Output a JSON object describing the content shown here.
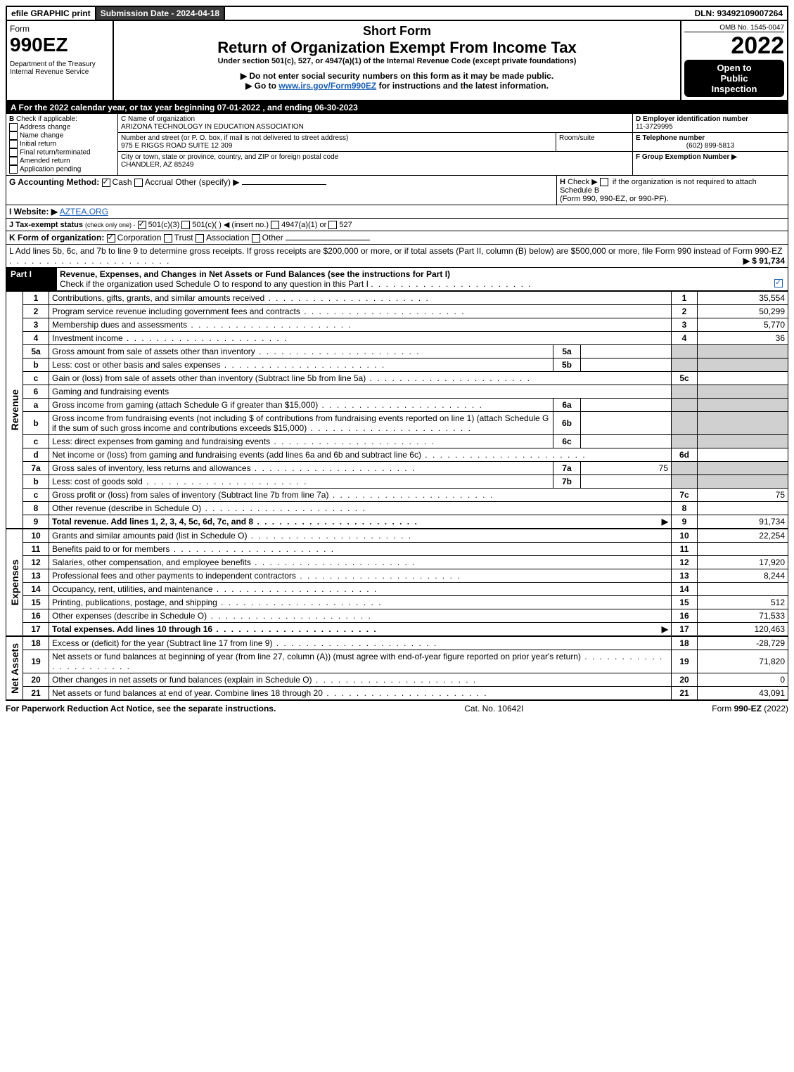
{
  "topbar": {
    "efile": "efile GRAPHIC print",
    "submission_label": "Submission Date - 2024-04-18",
    "dln": "DLN: 93492109007264"
  },
  "header": {
    "form_word": "Form",
    "form_no": "990EZ",
    "dept": "Department of the Treasury",
    "irs": "Internal Revenue Service",
    "short_form": "Short Form",
    "title": "Return of Organization Exempt From Income Tax",
    "subtitle": "Under section 501(c), 527, or 4947(a)(1) of the Internal Revenue Code (except private foundations)",
    "warn": "▶ Do not enter social security numbers on this form as it may be made public.",
    "goto_pre": "▶ Go to ",
    "goto_link": "www.irs.gov/Form990EZ",
    "goto_post": " for instructions and the latest information.",
    "omb": "OMB No. 1545-0047",
    "year": "2022",
    "open1": "Open to",
    "open2": "Public",
    "open3": "Inspection"
  },
  "lineA": "A  For the 2022 calendar year, or tax year beginning 07-01-2022 , and ending 06-30-2023",
  "boxB": {
    "label": "B",
    "check": "Check if applicable:",
    "opts": [
      "Address change",
      "Name change",
      "Initial return",
      "Final return/terminated",
      "Amended return",
      "Application pending"
    ]
  },
  "boxC": {
    "label": "C Name of organization",
    "name": "ARIZONA TECHNOLOGY IN EDUCATION ASSOCIATION",
    "street_label": "Number and street (or P. O. box, if mail is not delivered to street address)",
    "room": "Room/suite",
    "street": "975 E RIGGS ROAD SUITE 12 309",
    "city_label": "City or town, state or province, country, and ZIP or foreign postal code",
    "city": "CHANDLER, AZ  85249"
  },
  "boxD": {
    "label": "D Employer identification number",
    "val": "11-3729995"
  },
  "boxE": {
    "label": "E Telephone number",
    "val": "(602) 899-5813"
  },
  "boxF": {
    "label": "F Group Exemption Number   ▶"
  },
  "lineG": {
    "label": "G Accounting Method:",
    "cash": "Cash",
    "accrual": "Accrual",
    "other": "Other (specify) ▶"
  },
  "lineH": {
    "label": "H",
    "text1": "Check ▶",
    "text2": "if the organization is not required to attach Schedule B",
    "text3": "(Form 990, 990-EZ, or 990-PF)."
  },
  "lineI": {
    "label": "I Website: ▶",
    "val": "AZTEA.ORG"
  },
  "lineJ": {
    "label": "J Tax-exempt status",
    "sub": "(check only one) -",
    "opts": [
      "501(c)(3)",
      "501(c)(  ) ◀ (insert no.)",
      "4947(a)(1) or",
      "527"
    ]
  },
  "lineK": {
    "label": "K Form of organization:",
    "opts": [
      "Corporation",
      "Trust",
      "Association",
      "Other"
    ]
  },
  "lineL": {
    "text": "L Add lines 5b, 6c, and 7b to line 9 to determine gross receipts. If gross receipts are $200,000 or more, or if total assets (Part II, column (B) below) are $500,000 or more, file Form 990 instead of Form 990-EZ",
    "val": "▶ $ 91,734"
  },
  "partI": {
    "label": "Part I",
    "title": "Revenue, Expenses, and Changes in Net Assets or Fund Balances (see the instructions for Part I)",
    "check_line": "Check if the organization used Schedule O to respond to any question in this Part I"
  },
  "side_labels": {
    "rev": "Revenue",
    "exp": "Expenses",
    "net": "Net Assets"
  },
  "revenue": [
    {
      "n": "1",
      "desc": "Contributions, gifts, grants, and similar amounts received",
      "num": "1",
      "val": "35,554"
    },
    {
      "n": "2",
      "desc": "Program service revenue including government fees and contracts",
      "num": "2",
      "val": "50,299"
    },
    {
      "n": "3",
      "desc": "Membership dues and assessments",
      "num": "3",
      "val": "5,770"
    },
    {
      "n": "4",
      "desc": "Investment income",
      "num": "4",
      "val": "36"
    },
    {
      "n": "5a",
      "desc": "Gross amount from sale of assets other than inventory",
      "sub": "5a",
      "subval": "",
      "grey": true
    },
    {
      "n": "b",
      "desc": "Less: cost or other basis and sales expenses",
      "sub": "5b",
      "subval": "",
      "grey": true
    },
    {
      "n": "c",
      "desc": "Gain or (loss) from sale of assets other than inventory (Subtract line 5b from line 5a)",
      "num": "5c",
      "val": ""
    },
    {
      "n": "6",
      "desc": "Gaming and fundraising events",
      "grey": true,
      "header": true
    },
    {
      "n": "a",
      "desc": "Gross income from gaming (attach Schedule G if greater than $15,000)",
      "sub": "6a",
      "subval": "",
      "grey": true
    },
    {
      "n": "b",
      "desc_html": "Gross income from fundraising events (not including $                       of contributions from fundraising events reported on line 1) (attach Schedule G if the sum of such gross income and contributions exceeds $15,000)",
      "sub": "6b",
      "subval": "",
      "grey": true
    },
    {
      "n": "c",
      "desc": "Less: direct expenses from gaming and fundraising events",
      "sub": "6c",
      "subval": "",
      "grey": true
    },
    {
      "n": "d",
      "desc": "Net income or (loss) from gaming and fundraising events (add lines 6a and 6b and subtract line 6c)",
      "num": "6d",
      "val": ""
    },
    {
      "n": "7a",
      "desc": "Gross sales of inventory, less returns and allowances",
      "sub": "7a",
      "subval": "75",
      "grey": true
    },
    {
      "n": "b",
      "desc": "Less: cost of goods sold",
      "sub": "7b",
      "subval": "",
      "grey": true
    },
    {
      "n": "c",
      "desc": "Gross profit or (loss) from sales of inventory (Subtract line 7b from line 7a)",
      "num": "7c",
      "val": "75"
    },
    {
      "n": "8",
      "desc": "Other revenue (describe in Schedule O)",
      "num": "8",
      "val": ""
    },
    {
      "n": "9",
      "desc": "Total revenue. Add lines 1, 2, 3, 4, 5c, 6d, 7c, and 8",
      "num": "9",
      "val": "91,734",
      "bold": true,
      "arrow": true
    }
  ],
  "expenses": [
    {
      "n": "10",
      "desc": "Grants and similar amounts paid (list in Schedule O)",
      "num": "10",
      "val": "22,254"
    },
    {
      "n": "11",
      "desc": "Benefits paid to or for members",
      "num": "11",
      "val": ""
    },
    {
      "n": "12",
      "desc": "Salaries, other compensation, and employee benefits",
      "num": "12",
      "val": "17,920"
    },
    {
      "n": "13",
      "desc": "Professional fees and other payments to independent contractors",
      "num": "13",
      "val": "8,244"
    },
    {
      "n": "14",
      "desc": "Occupancy, rent, utilities, and maintenance",
      "num": "14",
      "val": ""
    },
    {
      "n": "15",
      "desc": "Printing, publications, postage, and shipping",
      "num": "15",
      "val": "512"
    },
    {
      "n": "16",
      "desc": "Other expenses (describe in Schedule O)",
      "num": "16",
      "val": "71,533"
    },
    {
      "n": "17",
      "desc": "Total expenses. Add lines 10 through 16",
      "num": "17",
      "val": "120,463",
      "bold": true,
      "arrow": true
    }
  ],
  "netassets": [
    {
      "n": "18",
      "desc": "Excess or (deficit) for the year (Subtract line 17 from line 9)",
      "num": "18",
      "val": "-28,729"
    },
    {
      "n": "19",
      "desc": "Net assets or fund balances at beginning of year (from line 27, column (A)) (must agree with end-of-year figure reported on prior year's return)",
      "num": "19",
      "val": "71,820"
    },
    {
      "n": "20",
      "desc": "Other changes in net assets or fund balances (explain in Schedule O)",
      "num": "20",
      "val": "0"
    },
    {
      "n": "21",
      "desc": "Net assets or fund balances at end of year. Combine lines 18 through 20",
      "num": "21",
      "val": "43,091"
    }
  ],
  "footer": {
    "left": "For Paperwork Reduction Act Notice, see the separate instructions.",
    "mid": "Cat. No. 10642I",
    "right_pre": "Form ",
    "right_bold": "990-EZ",
    "right_post": " (2022)"
  }
}
